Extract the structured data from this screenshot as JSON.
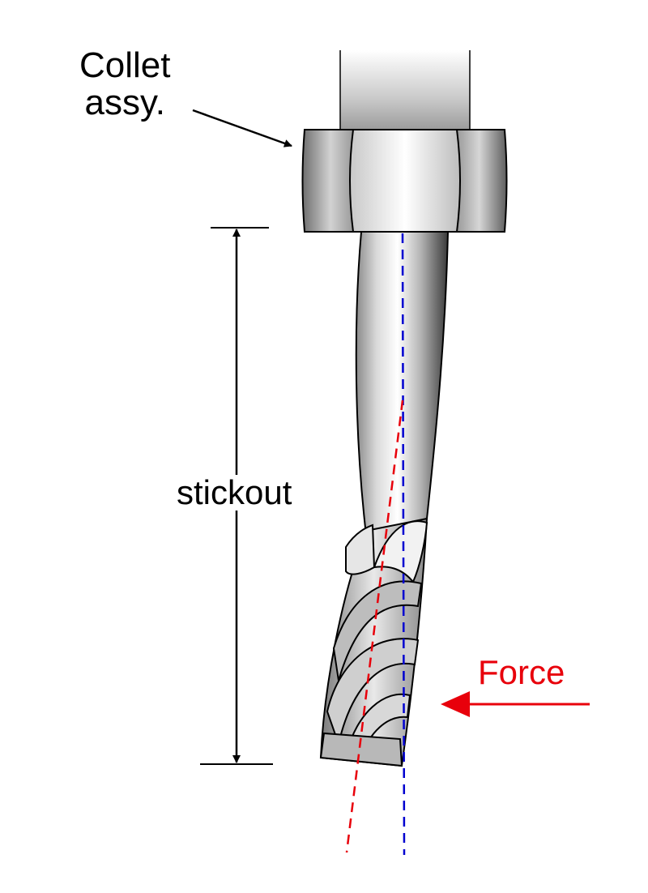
{
  "labels": {
    "collet_line1": "Collet",
    "collet_line2": "assy.",
    "stickout": "stickout",
    "force": "Force"
  },
  "colors": {
    "force": "#e8000b",
    "tool_axis": "#0000d0",
    "deflected_axis": "#e8000b",
    "outline": "#000000"
  }
}
